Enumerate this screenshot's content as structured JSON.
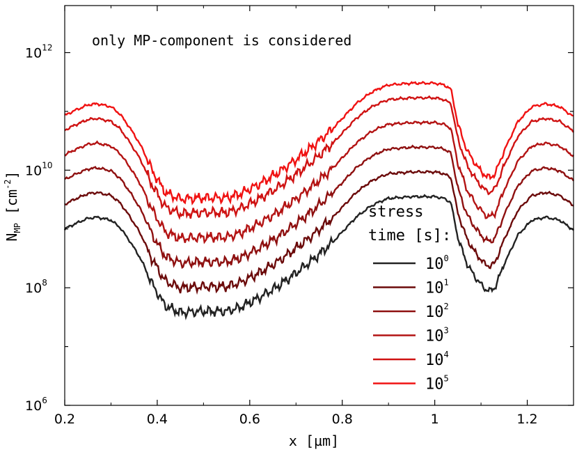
{
  "chart_data": {
    "type": "line",
    "title": "",
    "annotation": "only MP-component is considered",
    "xlabel": {
      "main": "x [µm]"
    },
    "ylabel": {
      "main": "N",
      "sub": "MP",
      "unit_open": " [cm",
      "unit_exp": "-2",
      "unit_close": "]"
    },
    "xlim": [
      0.2,
      1.3
    ],
    "ylim_log10": [
      6,
      12.8
    ],
    "y_scale": "log",
    "x_ticks": [
      {
        "value": 0.2,
        "label": "0.2"
      },
      {
        "value": 0.4,
        "label": "0.4"
      },
      {
        "value": 0.6,
        "label": "0.6"
      },
      {
        "value": 0.8,
        "label": "0.8"
      },
      {
        "value": 1.0,
        "label": "1"
      },
      {
        "value": 1.2,
        "label": "1.2"
      }
    ],
    "y_ticks": [
      {
        "exp": 6,
        "base": "10",
        "sup": "6"
      },
      {
        "exp": 8,
        "base": "10",
        "sup": "8"
      },
      {
        "exp": 10,
        "base": "10",
        "sup": "10"
      },
      {
        "exp": 12,
        "base": "10",
        "sup": "12"
      }
    ],
    "grid": false,
    "legend": {
      "placement": "bottom-right",
      "title_line1": "stress",
      "title_line2": "time [s]:"
    },
    "base_curve": {
      "x": [
        0.2,
        0.22,
        0.25,
        0.27,
        0.3,
        0.32,
        0.34,
        0.36,
        0.37,
        0.38,
        0.39,
        0.4,
        0.41,
        0.42,
        0.45,
        0.5,
        0.55,
        0.58,
        0.62,
        0.66,
        0.7,
        0.74,
        0.78,
        0.8,
        0.83,
        0.86,
        0.88,
        0.9,
        0.95,
        1.0,
        1.02,
        1.035,
        1.05,
        1.07,
        1.09,
        1.11,
        1.12,
        1.13,
        1.15,
        1.18,
        1.21,
        1.24,
        1.27,
        1.3
      ],
      "log10": [
        9.0,
        9.08,
        9.18,
        9.2,
        9.15,
        9.02,
        8.8,
        8.55,
        8.4,
        8.22,
        8.05,
        7.92,
        7.78,
        7.68,
        7.58,
        7.6,
        7.6,
        7.67,
        7.83,
        8.02,
        8.25,
        8.5,
        8.78,
        8.95,
        9.2,
        9.38,
        9.46,
        9.52,
        9.55,
        9.55,
        9.52,
        9.45,
        8.85,
        8.4,
        8.15,
        7.97,
        7.95,
        8.0,
        8.4,
        8.9,
        9.15,
        9.2,
        9.15,
        8.98
      ]
    },
    "series": [
      {
        "name_base": "10",
        "name_sup": "0",
        "color": "#222222",
        "offset": 0.0
      },
      {
        "name_base": "10",
        "name_sup": "1",
        "color": "#6b0a0a",
        "offset": 0.42
      },
      {
        "name_base": "10",
        "name_sup": "2",
        "color": "#8e1010",
        "offset": 0.84
      },
      {
        "name_base": "10",
        "name_sup": "3",
        "color": "#b31313",
        "offset": 1.26
      },
      {
        "name_base": "10",
        "name_sup": "4",
        "color": "#cf1212",
        "offset": 1.68
      },
      {
        "name_base": "10",
        "name_sup": "5",
        "color": "#f01212",
        "offset": 1.93
      }
    ]
  }
}
